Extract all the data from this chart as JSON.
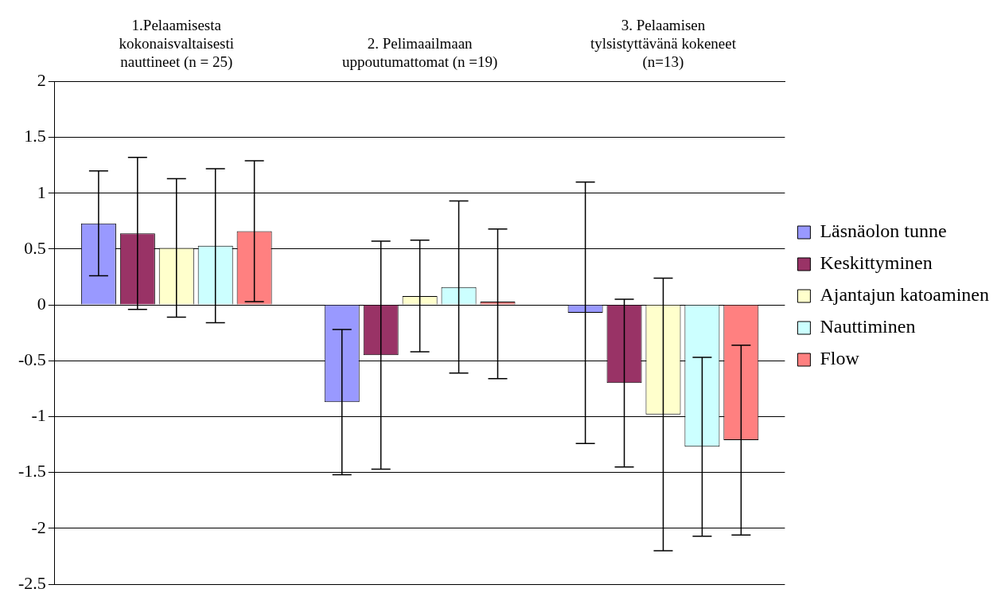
{
  "chart_data": {
    "type": "bar",
    "categories": [
      "1.Pelaamisesta kokonaisvaltaisesti nauttineet (n = 25)",
      "2. Pelimaailmaan uppoutumattomat (n =19)",
      "3. Pelaamisen tylsistyttävänä kokeneet (n=13)"
    ],
    "series": [
      {
        "name": "Läsnäolon tunne",
        "color": "#9999ff",
        "values": [
          0.73,
          -0.87,
          -0.07
        ],
        "errors": [
          0.47,
          0.65,
          1.17
        ]
      },
      {
        "name": "Keskittyminen",
        "color": "#993366",
        "values": [
          0.64,
          -0.45,
          -0.7
        ],
        "errors": [
          0.68,
          1.02,
          0.75
        ]
      },
      {
        "name": "Ajantajun katoaminen",
        "color": "#ffffcc",
        "values": [
          0.51,
          0.08,
          -0.98
        ],
        "errors": [
          0.62,
          0.5,
          1.22
        ]
      },
      {
        "name": "Nauttiminen",
        "color": "#ccffff",
        "values": [
          0.53,
          0.16,
          -1.27
        ],
        "errors": [
          0.69,
          0.77,
          0.8
        ]
      },
      {
        "name": "Flow",
        "color": "#ff8080",
        "values": [
          0.66,
          0.01,
          -1.21
        ],
        "errors": [
          0.63,
          0.67,
          0.85
        ]
      }
    ],
    "ylim": [
      -2.5,
      2
    ],
    "yticks": [
      -2.5,
      -2,
      -1.5,
      -1,
      -0.5,
      0,
      0.5,
      1,
      1.5,
      2
    ],
    "grid": "y",
    "legend": "right"
  }
}
